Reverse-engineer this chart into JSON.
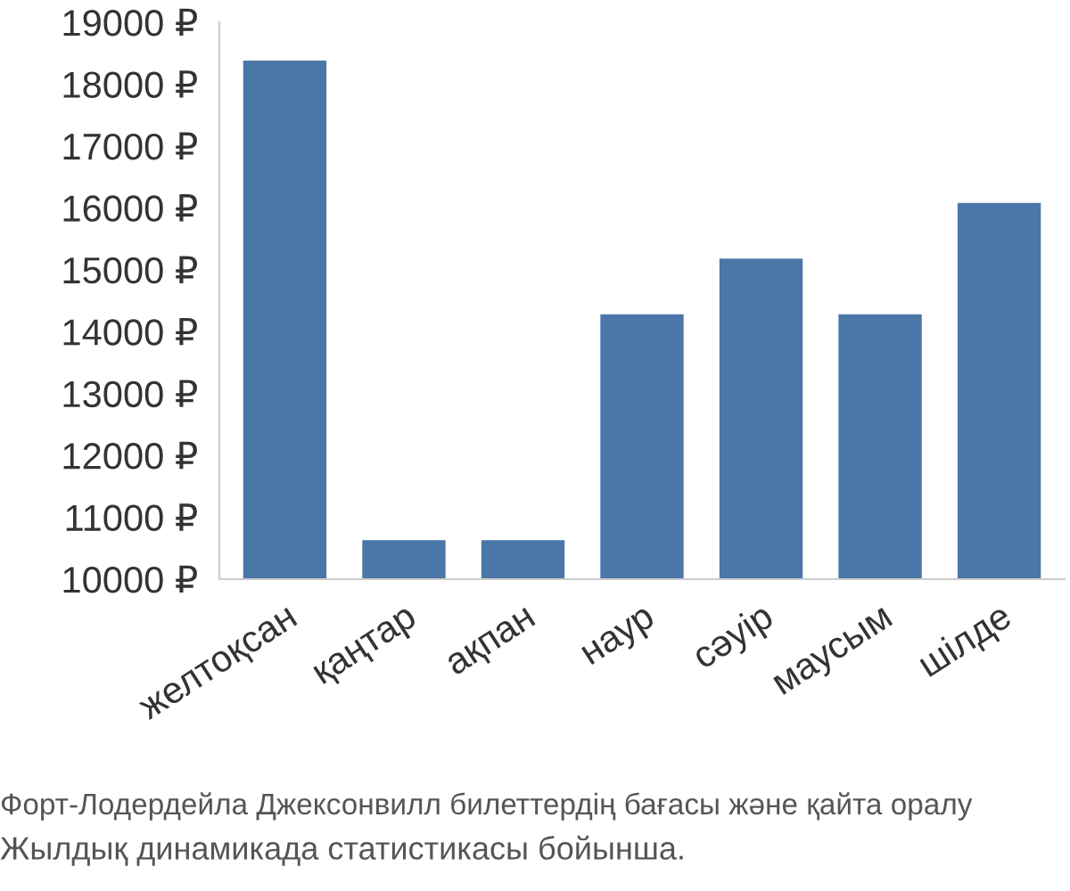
{
  "chart_data": {
    "type": "bar",
    "categories": [
      "желтоқсан",
      "қаңтар",
      "ақпан",
      "наур",
      "сәуір",
      "маусым",
      "шілде"
    ],
    "values": [
      18400,
      10650,
      10650,
      14300,
      15200,
      14300,
      16100
    ],
    "color": "#4a76a8",
    "ylim": [
      10000,
      19000
    ],
    "yticks": [
      {
        "value": 10000,
        "label": "10000 ₽"
      },
      {
        "value": 11000,
        "label": "11000 ₽"
      },
      {
        "value": 12000,
        "label": "12000 ₽"
      },
      {
        "value": 13000,
        "label": "13000 ₽"
      },
      {
        "value": 14000,
        "label": "14000 ₽"
      },
      {
        "value": 15000,
        "label": "15000 ₽"
      },
      {
        "value": 16000,
        "label": "16000 ₽"
      },
      {
        "value": 17000,
        "label": "17000 ₽"
      },
      {
        "value": 18000,
        "label": "18000 ₽"
      },
      {
        "value": 19000,
        "label": "19000 ₽"
      }
    ],
    "grid": false,
    "annotations": [
      "Форт-Лодердейла Джексонвилл билеттердің бағасы және қайта оралу",
      "Жылдық динамикада статистикасы бойынша."
    ]
  }
}
